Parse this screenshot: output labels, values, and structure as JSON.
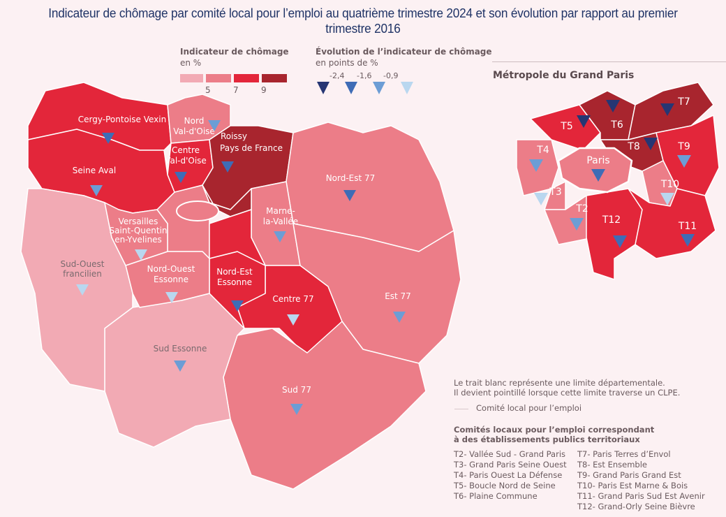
{
  "title": "Indicateur de chômage par comité local pour l’emploi au quatrième trimestre 2024 et son évolution par rapport au premier trimestre 2016",
  "legend": {
    "rate_title": "Indicateur de chômage",
    "rate_unit": "en %",
    "rate_breaks": [
      "5",
      "7",
      "9"
    ],
    "rate_colors": [
      "#f2aab4",
      "#ec7d88",
      "#e3263a",
      "#a8252e"
    ],
    "evo_title": "Évolution de l’indicateur de chômage",
    "evo_unit": "en points de %",
    "evo_breaks": [
      "-2,4",
      "-1,6",
      "-0,9"
    ],
    "evo_colors": [
      "#263673",
      "#3e6cb6",
      "#6c9dd5",
      "#b9d7ef"
    ]
  },
  "regions": [
    {
      "name": "Cergy-Pontoise Vexin",
      "rate_class": 2,
      "evo_class": 1
    },
    {
      "name": "Seine Aval",
      "rate_class": 2,
      "evo_class": 2
    },
    {
      "name": "Nord Val-d'Oise",
      "rate_class": 1,
      "evo_class": 2
    },
    {
      "name": "Centre Val-d'Oise",
      "rate_class": 2,
      "evo_class": 1
    },
    {
      "name": "Roissy Pays de France",
      "rate_class": 3,
      "evo_class": 1
    },
    {
      "name": "Nord-Est 77",
      "rate_class": 1,
      "evo_class": 1
    },
    {
      "name": "Marne-la-Vallée",
      "rate_class": 1,
      "evo_class": 2
    },
    {
      "name": "Versailles Saint-Quentin en-Yvelines",
      "rate_class": 1,
      "evo_class": 3
    },
    {
      "name": "Sud-Ouest francilien",
      "rate_class": 0,
      "evo_class": 3
    },
    {
      "name": "Nord-Ouest Essonne",
      "rate_class": 1,
      "evo_class": 3
    },
    {
      "name": "Nord-Est Essonne",
      "rate_class": 2,
      "evo_class": 1
    },
    {
      "name": "Centre 77",
      "rate_class": 2,
      "evo_class": 3
    },
    {
      "name": "Est 77",
      "rate_class": 1,
      "evo_class": 2
    },
    {
      "name": "Sud Essonne",
      "rate_class": 0,
      "evo_class": 2
    },
    {
      "name": "Sud 77",
      "rate_class": 1,
      "evo_class": 2
    }
  ],
  "inset": {
    "title": "Métropole du Grand Paris",
    "regions": [
      {
        "name": "T5",
        "rate_class": 2,
        "evo_class": 0
      },
      {
        "name": "T6",
        "rate_class": 3,
        "evo_class": 0
      },
      {
        "name": "T7",
        "rate_class": 3,
        "evo_class": 0
      },
      {
        "name": "T8",
        "rate_class": 3,
        "evo_class": 0
      },
      {
        "name": "T9",
        "rate_class": 2,
        "evo_class": 2
      },
      {
        "name": "T4",
        "rate_class": 1,
        "evo_class": 2
      },
      {
        "name": "Paris",
        "rate_class": 1,
        "evo_class": 1
      },
      {
        "name": "T3",
        "rate_class": 1,
        "evo_class": 3
      },
      {
        "name": "T2",
        "rate_class": 1,
        "evo_class": 2
      },
      {
        "name": "T10",
        "rate_class": 1,
        "evo_class": 3
      },
      {
        "name": "T12",
        "rate_class": 2,
        "evo_class": 1
      },
      {
        "name": "T11",
        "rate_class": 2,
        "evo_class": 1
      }
    ]
  },
  "notes": {
    "line1": "Le trait blanc représente une limite départementale.",
    "line2": "Il devient pointillé lorsque cette limite traverse un CLPE.",
    "clpe_legend": "Comité local pour l’emploi",
    "ept_title_1": "Comités locaux pour l’emploi correspondant",
    "ept_title_2": "à des établissements publics territoriaux",
    "ept_left": [
      "T2- Vallée Sud - Grand Paris",
      "T3- Grand Paris Seine Ouest",
      "T4- Paris Ouest La Défense",
      "T5- Boucle Nord de Seine",
      "T6- Plaine Commune"
    ],
    "ept_right": [
      "T7- Paris Terres d’Envol",
      "T8- Est Ensemble",
      "T9- Grand Paris Grand Est",
      "T10- Paris Est Marne & Bois",
      "T11- Grand Paris Sud Est Avenir",
      "T12- Grand-Orly Seine Bièvre"
    ]
  }
}
